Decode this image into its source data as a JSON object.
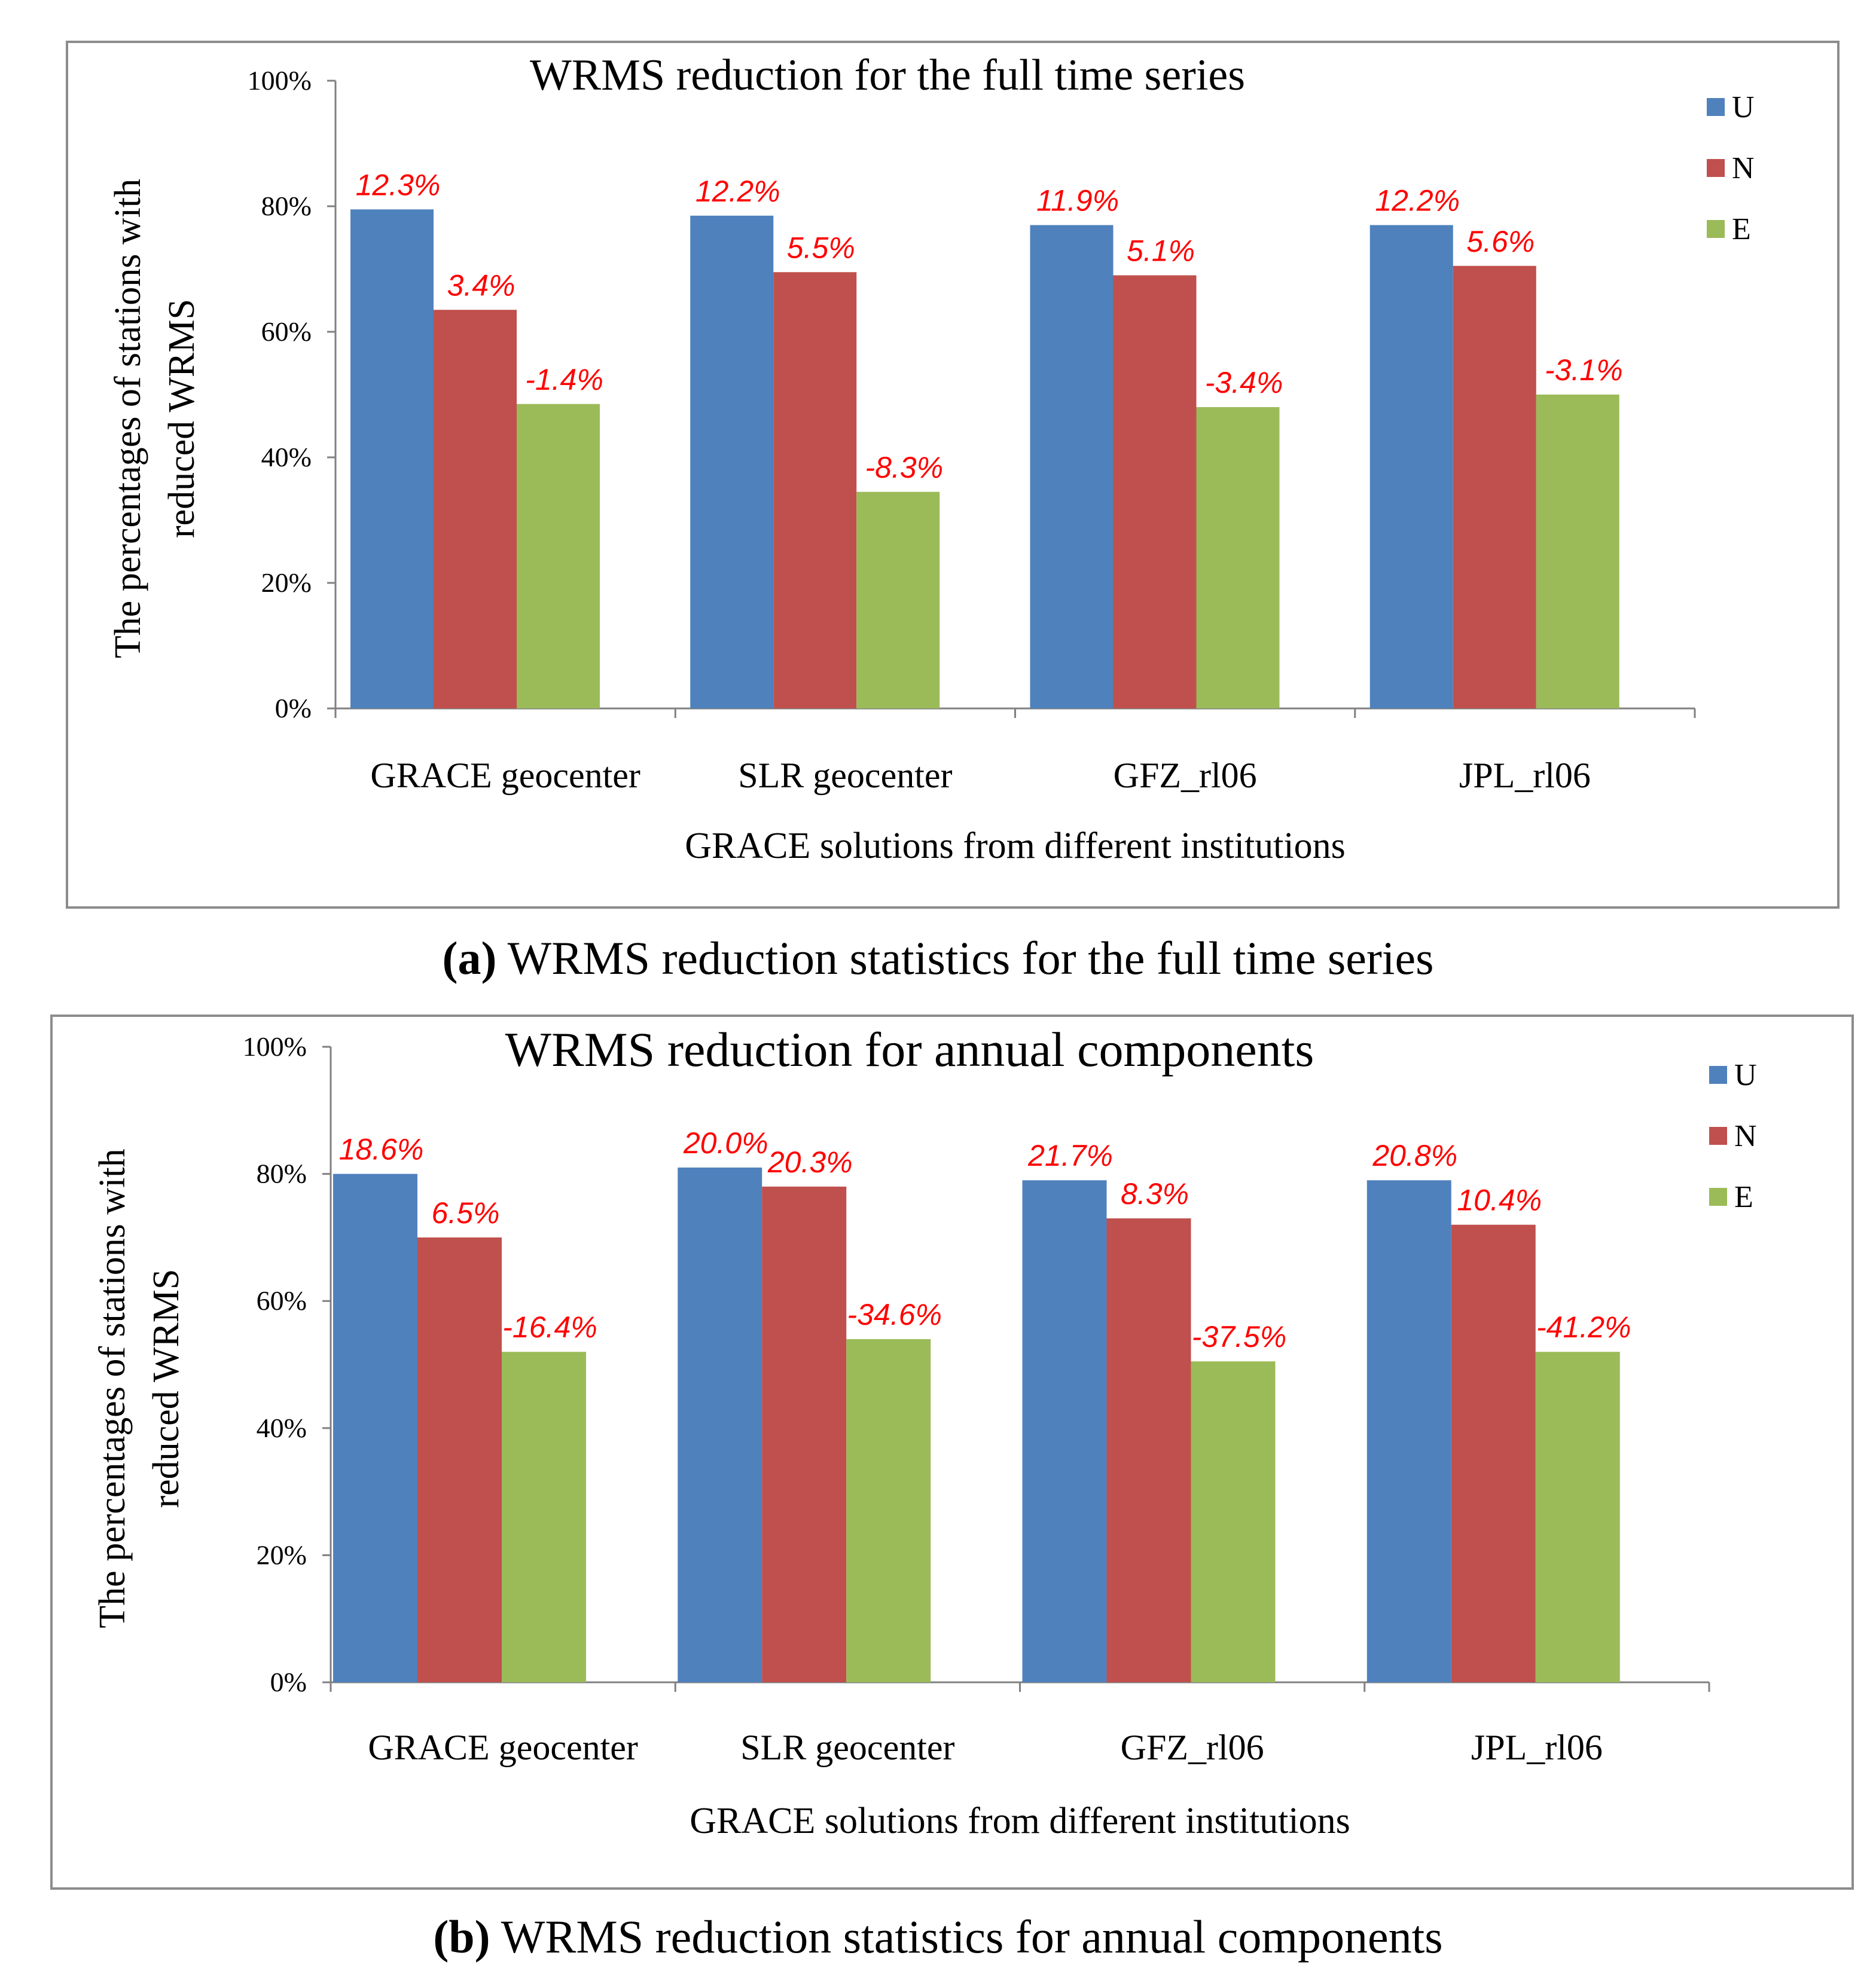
{
  "colors": {
    "U": "#4f81bd",
    "N": "#c0504d",
    "E": "#9bbb59",
    "label": "#ff0000",
    "frame": "#8c8c8c",
    "axis": "#808080"
  },
  "chart_data": [
    {
      "type": "bar",
      "title": "WRMS reduction for the full time series",
      "xlabel": "GRACE solutions from different institutions",
      "ylabel_lines": [
        "The percentages of stations with",
        "reduced WRMS"
      ],
      "ylim": [
        0,
        100
      ],
      "yticks": [
        "0%",
        "20%",
        "40%",
        "60%",
        "80%",
        "100%"
      ],
      "categories": [
        "GRACE geocenter",
        "SLR geocenter",
        "GFZ_rl06",
        "JPL_rl06"
      ],
      "series": [
        {
          "name": "U",
          "values": [
            79.5,
            78.5,
            77,
            77
          ],
          "labels": [
            "12.3%",
            "12.2%",
            "11.9%",
            "12.2%"
          ]
        },
        {
          "name": "N",
          "values": [
            63.5,
            69.5,
            69,
            70.5
          ],
          "labels": [
            "3.4%",
            "5.5%",
            "5.1%",
            "5.6%"
          ]
        },
        {
          "name": "E",
          "values": [
            48.5,
            34.5,
            48,
            50
          ],
          "labels": [
            "-1.4%",
            "-8.3%",
            "-3.4%",
            "-3.1%"
          ]
        }
      ],
      "legend": [
        "U",
        "N",
        "E"
      ],
      "legend_position": "top-right"
    },
    {
      "type": "bar",
      "title": "WRMS reduction for annual components",
      "xlabel": "GRACE solutions from different institutions",
      "ylabel_lines": [
        "The percentages of stations with",
        "reduced WRMS"
      ],
      "ylim": [
        0,
        100
      ],
      "yticks": [
        "0%",
        "20%",
        "40%",
        "60%",
        "80%",
        "100%"
      ],
      "categories": [
        "GRACE geocenter",
        "SLR geocenter",
        "GFZ_rl06",
        "JPL_rl06"
      ],
      "series": [
        {
          "name": "U",
          "values": [
            80,
            81,
            79,
            79
          ],
          "labels": [
            "18.6%",
            "20.0%",
            "21.7%",
            "20.8%"
          ]
        },
        {
          "name": "N",
          "values": [
            70,
            78,
            73,
            72
          ],
          "labels": [
            "6.5%",
            "20.3%",
            "8.3%",
            "10.4%"
          ]
        },
        {
          "name": "E",
          "values": [
            52,
            54,
            50.5,
            52
          ],
          "labels": [
            "-16.4%",
            "-34.6%",
            "-37.5%",
            "-41.2%"
          ]
        }
      ],
      "legend": [
        "U",
        "N",
        "E"
      ],
      "legend_position": "top-right"
    }
  ],
  "captions": {
    "a": {
      "tag": "(a)",
      "text": " WRMS reduction statistics for the full time series"
    },
    "b": {
      "tag": "(b)",
      "text": " WRMS reduction statistics for annual components"
    }
  }
}
